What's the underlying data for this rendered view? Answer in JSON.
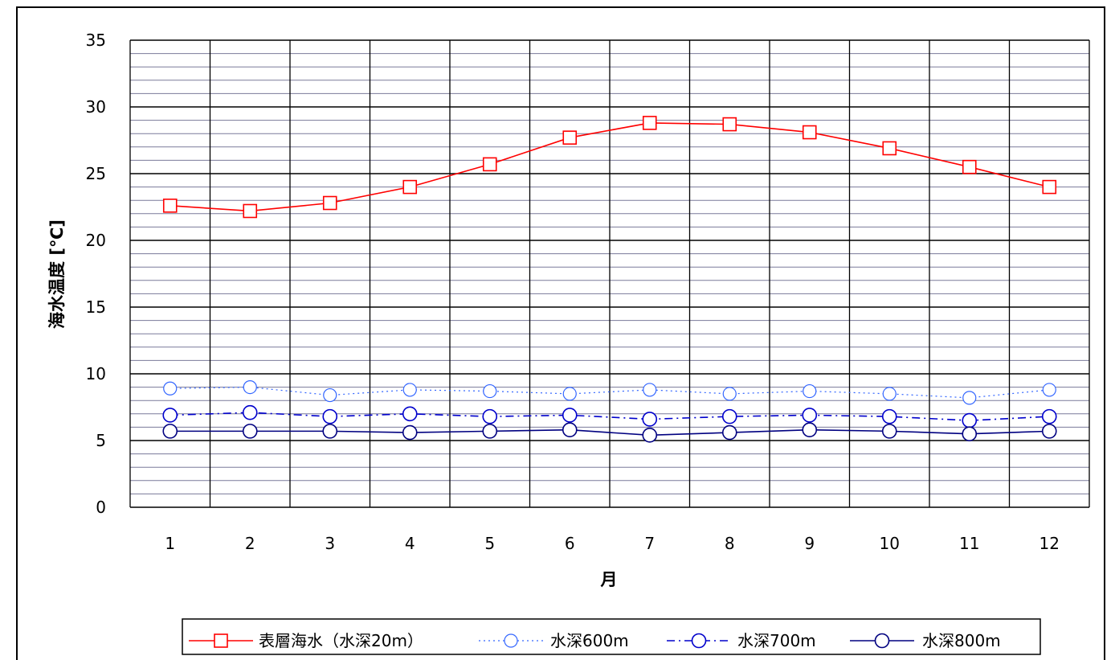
{
  "chart_data": {
    "type": "line",
    "title": "",
    "xlabel": "月",
    "ylabel": "海水温度 [℃]",
    "ylim": [
      0,
      35
    ],
    "y_major_step": 5,
    "y_minor_step": 1,
    "yticks": [
      "0",
      "5",
      "10",
      "15",
      "20",
      "25",
      "30",
      "35"
    ],
    "categories": [
      "1",
      "2",
      "3",
      "4",
      "5",
      "6",
      "7",
      "8",
      "9",
      "10",
      "11",
      "12"
    ],
    "grid": true,
    "legend_position": "bottom",
    "series": [
      {
        "name": "表層海水（水深20m）",
        "values": [
          22.6,
          22.2,
          22.8,
          24.0,
          25.7,
          27.7,
          28.8,
          28.7,
          28.1,
          26.9,
          25.5,
          24.0
        ],
        "color": "#ff0000",
        "marker": "square",
        "line_style": "solid"
      },
      {
        "name": "水深600m",
        "values": [
          8.9,
          9.0,
          8.4,
          8.8,
          8.7,
          8.5,
          8.8,
          8.5,
          8.7,
          8.5,
          8.2,
          8.8
        ],
        "color": "#3366ff",
        "marker": "circle-small",
        "line_style": "dotted"
      },
      {
        "name": "水深700m",
        "values": [
          6.9,
          7.1,
          6.8,
          7.0,
          6.8,
          6.9,
          6.6,
          6.8,
          6.9,
          6.8,
          6.5,
          6.8
        ],
        "color": "#0000cc",
        "marker": "circle",
        "line_style": "dashdot"
      },
      {
        "name": "水深800m",
        "values": [
          5.7,
          5.7,
          5.7,
          5.6,
          5.7,
          5.8,
          5.4,
          5.6,
          5.8,
          5.7,
          5.5,
          5.7
        ],
        "color": "#000080",
        "marker": "circle",
        "line_style": "solid"
      }
    ]
  }
}
